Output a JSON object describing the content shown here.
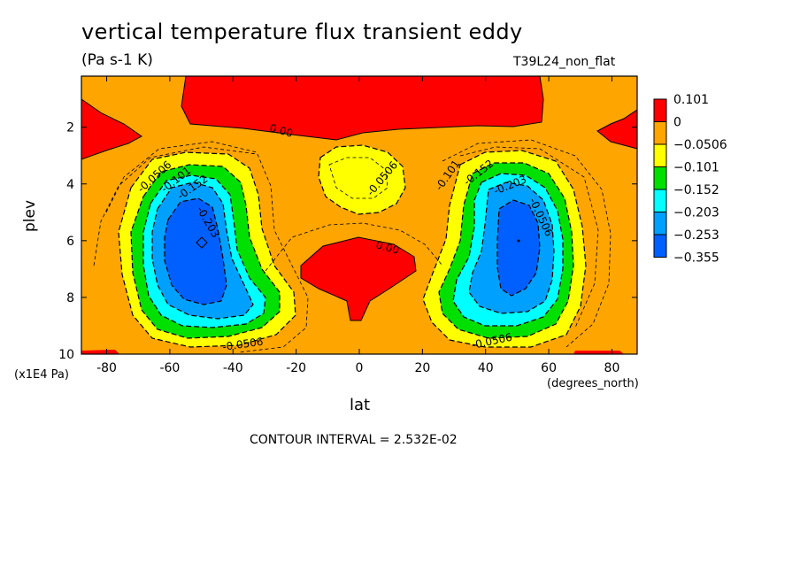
{
  "chart_data": {
    "type": "contour",
    "title": "vertical temperature flux transient eddy",
    "units": "(Pa s-1 K)",
    "run_label": "T39L24_non_flat",
    "xlabel": "lat",
    "x_unit": "(degrees_north)",
    "ylabel": "plev",
    "y_unit": "(x1E4 Pa)",
    "xlim": [
      -88,
      88
    ],
    "ylim": [
      10,
      0.2
    ],
    "x_ticks": [
      "-80",
      "-60",
      "-40",
      "-20",
      "0",
      "20",
      "40",
      "60",
      "80"
    ],
    "y_ticks": [
      "2",
      "4",
      "6",
      "8",
      "10"
    ],
    "contour_interval": "CONTOUR INTERVAL = 2.532E-02",
    "colorbar": {
      "labels": [
        "0.101",
        "0",
        "-0.0506",
        "-0.101",
        "-0.152",
        "-0.203",
        "-0.253",
        "-0.355"
      ],
      "colors": [
        "#ff0000",
        "#ffa500",
        "#ffff00",
        "#00e000",
        "#00ffff",
        "#00a0ff",
        "#0060ff"
      ]
    },
    "contour_labels": [
      "0.00",
      "0.00",
      "-0.0506",
      "-0.101",
      "-0.152",
      "-0.203",
      "-0.0506",
      "-0.0506",
      "-0.101",
      "-0.152",
      "-0.203",
      "-0.0506",
      "-0.0506"
    ],
    "features": [
      {
        "region": "southern minimum",
        "lat": -50,
        "plev": 6.0,
        "value": -0.355
      },
      {
        "region": "northern minimum",
        "lat": 50,
        "plev": 6.0,
        "value": -0.355
      },
      {
        "region": "upper positive band",
        "lat": 0,
        "plev": 1.2,
        "value": 0.05
      },
      {
        "region": "mid positive lobe",
        "lat": 0,
        "plev": 7.2,
        "value": 0.03
      }
    ]
  }
}
